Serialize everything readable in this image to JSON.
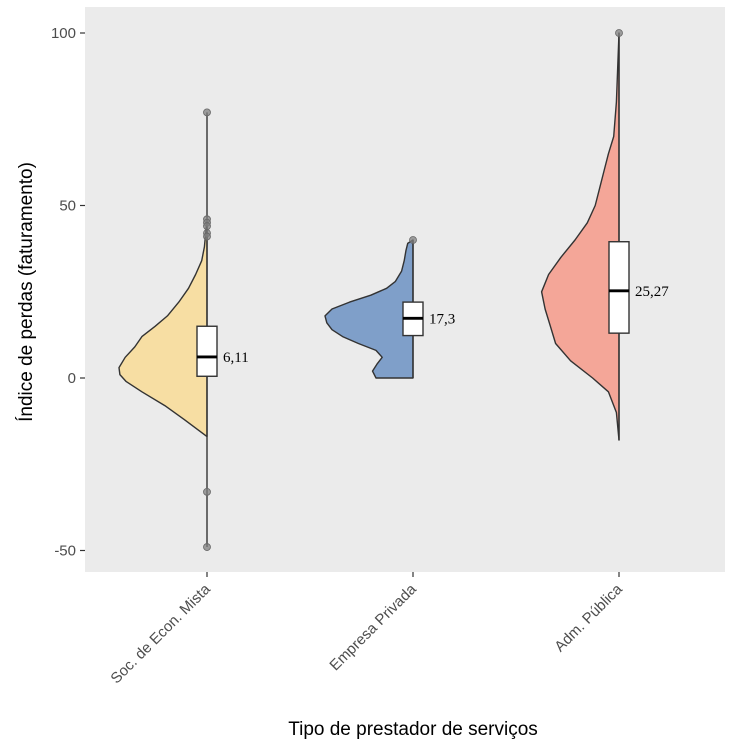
{
  "chart_data": {
    "type": "violin",
    "xlabel": "Tipo de prestador de serviços",
    "ylabel": "Índice de perdas (faturamento)",
    "ylim": [
      -55,
      105
    ],
    "yticks": [
      -50,
      0,
      50,
      100
    ],
    "ytick_labels": [
      "-50",
      "0",
      "50",
      "100"
    ],
    "grid": false,
    "background": "#ebebeb",
    "groups": [
      {
        "category": "Soc. de Econ. Mista",
        "color": "#f7dea3",
        "median": 6.11,
        "median_label": "6,11",
        "q1": 0.5,
        "q3": 15,
        "whisker_low": -49,
        "whisker_high": 77,
        "violin_min": -17,
        "violin_max": 46,
        "outliers": [
          77,
          46,
          45,
          44,
          42,
          41,
          -33,
          -49
        ],
        "density": [
          [
            -17,
            0.0
          ],
          [
            -12,
            0.26
          ],
          [
            -8,
            0.48
          ],
          [
            -4,
            0.74
          ],
          [
            -1,
            0.92
          ],
          [
            1,
            0.99
          ],
          [
            3,
            1.0
          ],
          [
            6,
            0.93
          ],
          [
            9,
            0.82
          ],
          [
            12,
            0.74
          ],
          [
            15,
            0.59
          ],
          [
            18,
            0.45
          ],
          [
            22,
            0.32
          ],
          [
            26,
            0.21
          ],
          [
            30,
            0.13
          ],
          [
            34,
            0.06
          ],
          [
            38,
            0.03
          ],
          [
            42,
            0.015
          ],
          [
            46,
            0.0
          ]
        ]
      },
      {
        "category": "Empresa Privada",
        "color": "#7f9fc9",
        "median": 17.3,
        "median_label": "17,3",
        "q1": 12.3,
        "q3": 22,
        "whisker_low": 0,
        "whisker_high": 40,
        "violin_min": 0,
        "violin_max": 40,
        "outliers": [
          40
        ],
        "density": [
          [
            0,
            0.42
          ],
          [
            2,
            0.46
          ],
          [
            4,
            0.41
          ],
          [
            6,
            0.35
          ],
          [
            8,
            0.42
          ],
          [
            10,
            0.62
          ],
          [
            12,
            0.8
          ],
          [
            14,
            0.92
          ],
          [
            16,
            0.98
          ],
          [
            18,
            1.0
          ],
          [
            20,
            0.92
          ],
          [
            22,
            0.72
          ],
          [
            24,
            0.48
          ],
          [
            26,
            0.3
          ],
          [
            28,
            0.2
          ],
          [
            31,
            0.13
          ],
          [
            34,
            0.1
          ],
          [
            37,
            0.08
          ],
          [
            39,
            0.06
          ],
          [
            40,
            0.0
          ]
        ]
      },
      {
        "category": "Adm. Pública",
        "color": "#f4a698",
        "median": 25.27,
        "median_label": "25,27",
        "q1": 13,
        "q3": 39.5,
        "whisker_low": -18,
        "whisker_high": 100,
        "violin_min": -18,
        "violin_max": 100,
        "outliers": [
          100
        ],
        "density": [
          [
            -18,
            0.0
          ],
          [
            -10,
            0.03
          ],
          [
            -4,
            0.12
          ],
          [
            0,
            0.3
          ],
          [
            5,
            0.55
          ],
          [
            10,
            0.72
          ],
          [
            15,
            0.78
          ],
          [
            20,
            0.84
          ],
          [
            25,
            0.88
          ],
          [
            30,
            0.8
          ],
          [
            35,
            0.66
          ],
          [
            40,
            0.5
          ],
          [
            45,
            0.36
          ],
          [
            50,
            0.27
          ],
          [
            55,
            0.22
          ],
          [
            60,
            0.17
          ],
          [
            65,
            0.12
          ],
          [
            70,
            0.06
          ],
          [
            80,
            0.03
          ],
          [
            90,
            0.015
          ],
          [
            100,
            0.0
          ]
        ]
      }
    ]
  }
}
